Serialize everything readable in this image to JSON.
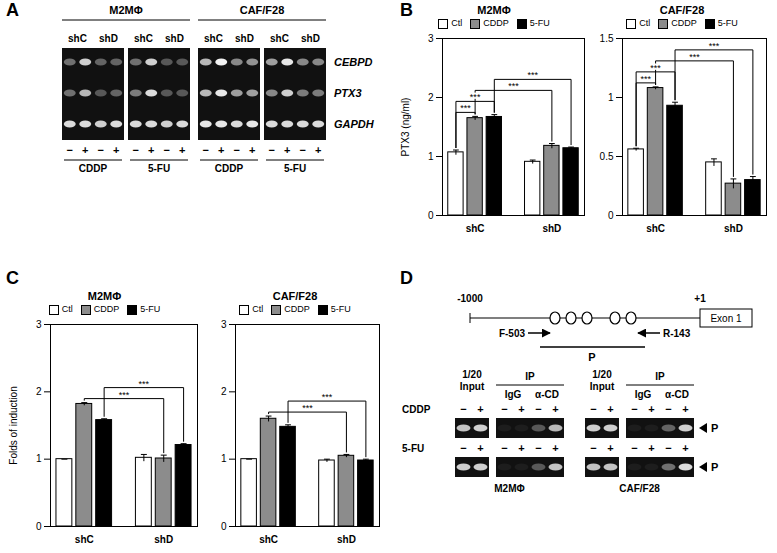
{
  "panel_labels": [
    "A",
    "B",
    "C",
    "D"
  ],
  "gel_A": {
    "cells": [
      "M2MΦ",
      "CAF/F28"
    ],
    "treatments": [
      "CDDP",
      "5-FU"
    ],
    "shRNA": [
      "shC",
      "shD"
    ],
    "signs": [
      "−",
      "+"
    ],
    "genes": [
      "CEBPD",
      "PTX3",
      "GAPDH"
    ],
    "band_intensity": [
      [
        0.4,
        0.8,
        0.35,
        0.35,
        0.4,
        0.8,
        0.3,
        0.3,
        0.7,
        0.95,
        0.5,
        0.55,
        0.6,
        0.9,
        0.5,
        0.5
      ],
      [
        0.4,
        0.7,
        0.3,
        0.35,
        0.45,
        0.85,
        0.3,
        0.3,
        0.7,
        0.9,
        0.6,
        0.6,
        0.5,
        0.8,
        0.45,
        0.45
      ],
      [
        0.85,
        0.85,
        0.8,
        0.85,
        0.85,
        0.85,
        0.8,
        0.85,
        0.9,
        0.9,
        0.85,
        0.9,
        0.85,
        0.85,
        0.85,
        0.85
      ]
    ]
  },
  "chart_data": [
    {
      "type": "bar",
      "title": "M2MΦ",
      "y_label": "PTX3 (ng/ml)",
      "categories": [
        "shC",
        "shD"
      ],
      "series": [
        {
          "name": "Ctl",
          "color": "#ffffff",
          "values": [
            1.07,
            0.91
          ],
          "errors": [
            0.04,
            0.03
          ]
        },
        {
          "name": "CDDP",
          "color": "#8c8c8c",
          "values": [
            1.65,
            1.18
          ],
          "errors": [
            0.03,
            0.04
          ]
        },
        {
          "name": "5-FU",
          "color": "#000000",
          "values": [
            1.67,
            1.14
          ],
          "errors": [
            0.04,
            0.02
          ]
        }
      ],
      "ylim": [
        0,
        3
      ],
      "yticks": [
        0,
        1,
        2,
        3
      ],
      "legend": "top",
      "annotations": [
        {
          "text": "***",
          "from": [
            "shC",
            "Ctl"
          ],
          "to": [
            "shC",
            "CDDP"
          ]
        },
        {
          "text": "***",
          "from": [
            "shC",
            "Ctl"
          ],
          "to": [
            "shC",
            "5-FU"
          ]
        },
        {
          "text": "***",
          "from": [
            "shC",
            "CDDP"
          ],
          "to": [
            "shD",
            "CDDP"
          ]
        },
        {
          "text": "***",
          "from": [
            "shC",
            "5-FU"
          ],
          "to": [
            "shD",
            "5-FU"
          ]
        }
      ]
    },
    {
      "type": "bar",
      "title": "CAF/F28",
      "categories": [
        "shC",
        "shD"
      ],
      "series": [
        {
          "name": "Ctl",
          "color": "#ffffff",
          "values": [
            0.56,
            0.45
          ],
          "errors": [
            0.01,
            0.03
          ]
        },
        {
          "name": "CDDP",
          "color": "#8c8c8c",
          "values": [
            1.08,
            0.27
          ],
          "errors": [
            0.01,
            0.04
          ]
        },
        {
          "name": "5-FU",
          "color": "#000000",
          "values": [
            0.93,
            0.3
          ],
          "errors": [
            0.03,
            0.03
          ]
        }
      ],
      "ylim": [
        0,
        1.5
      ],
      "yticks": [
        0,
        0.5,
        1,
        1.5
      ],
      "legend": "top",
      "annotations": [
        {
          "text": "***",
          "from": [
            "shC",
            "Ctl"
          ],
          "to": [
            "shC",
            "CDDP"
          ]
        },
        {
          "text": "***",
          "from": [
            "shC",
            "Ctl"
          ],
          "to": [
            "shC",
            "5-FU"
          ]
        },
        {
          "text": "***",
          "from": [
            "shC",
            "CDDP"
          ],
          "to": [
            "shD",
            "CDDP"
          ]
        },
        {
          "text": "***",
          "from": [
            "shC",
            "5-FU"
          ],
          "to": [
            "shD",
            "5-FU"
          ]
        }
      ]
    },
    {
      "type": "bar",
      "title": "M2MΦ",
      "y_label": "Folds of induction",
      "categories": [
        "shC",
        "shD"
      ],
      "series": [
        {
          "name": "Ctl",
          "color": "#ffffff",
          "values": [
            1,
            1.02
          ],
          "errors": [
            0,
            0.05
          ]
        },
        {
          "name": "CDDP",
          "color": "#8c8c8c",
          "values": [
            1.82,
            1.01
          ],
          "errors": [
            0.02,
            0.05
          ]
        },
        {
          "name": "5-FU",
          "color": "#000000",
          "values": [
            1.58,
            1.21
          ],
          "errors": [
            0.02,
            0.02
          ]
        }
      ],
      "ylim": [
        0,
        3
      ],
      "yticks": [
        0,
        1,
        2,
        3
      ],
      "legend": "top",
      "annotations": [
        {
          "text": "***",
          "from": [
            "shC",
            "CDDP"
          ],
          "to": [
            "shD",
            "CDDP"
          ]
        },
        {
          "text": "***",
          "from": [
            "shC",
            "5-FU"
          ],
          "to": [
            "shD",
            "5-FU"
          ]
        }
      ]
    },
    {
      "type": "bar",
      "title": "CAF/F28",
      "categories": [
        "shC",
        "shD"
      ],
      "series": [
        {
          "name": "Ctl",
          "color": "#ffffff",
          "values": [
            1,
            0.98
          ],
          "errors": [
            0,
            0.02
          ]
        },
        {
          "name": "CDDP",
          "color": "#8c8c8c",
          "values": [
            1.6,
            1.05
          ],
          "errors": [
            0.04,
            0.02
          ]
        },
        {
          "name": "5-FU",
          "color": "#000000",
          "values": [
            1.48,
            0.98
          ],
          "errors": [
            0.03,
            0.02
          ]
        }
      ],
      "ylim": [
        0,
        3
      ],
      "yticks": [
        0,
        1,
        2,
        3
      ],
      "legend": "top",
      "annotations": [
        {
          "text": "***",
          "from": [
            "shC",
            "CDDP"
          ],
          "to": [
            "shD",
            "CDDP"
          ]
        },
        {
          "text": "***",
          "from": [
            "shC",
            "5-FU"
          ],
          "to": [
            "shD",
            "5-FU"
          ]
        }
      ]
    }
  ],
  "diagram_D": {
    "start": "-1000",
    "end": "+1",
    "exon": "Exon 1",
    "forward_primer": "F-503",
    "reverse_primer": "R-143",
    "product": "P",
    "binding_sites": 5
  },
  "gel_D": {
    "treatments": [
      "CDDP",
      "5-FU"
    ],
    "signs": [
      "−",
      "+"
    ],
    "cells": [
      "M2MΦ",
      "CAF/F28"
    ],
    "input_label": [
      "1/20",
      "Input"
    ],
    "ip_label": "IP",
    "ip_lanes": [
      "IgG",
      "α-CD"
    ],
    "band_label": "P",
    "band_intensity": [
      [
        [
          0.75,
          0.8,
          0.05,
          0.05,
          0.3,
          0.7
        ],
        [
          0.8,
          0.8,
          0.05,
          0.05,
          0.35,
          0.8
        ]
      ],
      [
        [
          0.8,
          0.8,
          0.05,
          0.05,
          0.3,
          0.75
        ],
        [
          0.75,
          0.75,
          0.05,
          0.05,
          0.4,
          0.85
        ]
      ]
    ]
  }
}
